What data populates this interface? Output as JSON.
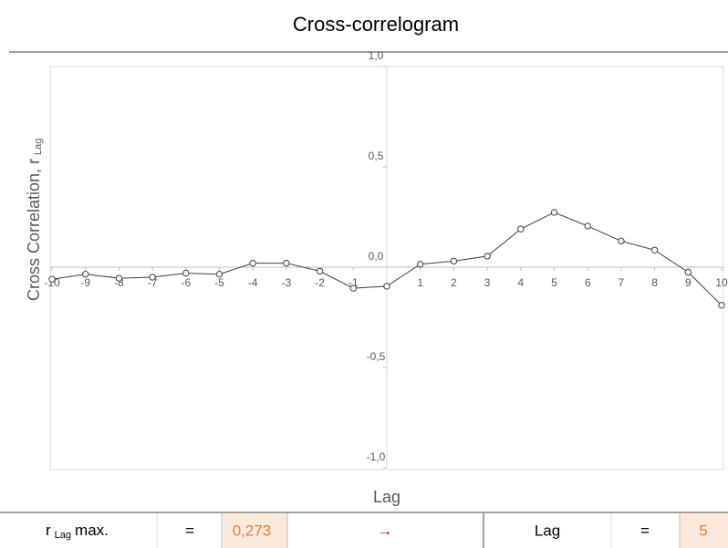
{
  "chart_data": {
    "type": "line",
    "title": "Cross-correlogram",
    "x_label": "Lag",
    "y_label": "Cross Correlation, r",
    "y_label_sub": "Lag",
    "x": [
      -10,
      -9,
      -8,
      -7,
      -6,
      -5,
      -4,
      -3,
      -2,
      -1,
      0,
      1,
      2,
      3,
      4,
      5,
      6,
      7,
      8,
      9,
      10
    ],
    "series": [
      {
        "color": "#404040",
        "values": [
          -0.06,
          -0.035,
          -0.055,
          -0.05,
          -0.03,
          -0.035,
          0.02,
          0.02,
          -0.02,
          -0.105,
          -0.095,
          0.015,
          0.03,
          0.055,
          0.19,
          0.273,
          0.205,
          0.13,
          0.085,
          -0.025,
          -0.19
        ]
      }
    ],
    "xlim": [
      -10,
      10
    ],
    "ylim": [
      -1,
      1
    ],
    "xticks": [
      -10,
      -9,
      -8,
      -7,
      -6,
      -5,
      -4,
      -3,
      -2,
      -1,
      1,
      2,
      3,
      4,
      5,
      6,
      7,
      8,
      9,
      10
    ],
    "yticks": [
      {
        "value": 1,
        "label": "1,0"
      },
      {
        "value": 0.5,
        "label": "0,5"
      },
      {
        "value": 0,
        "label": "0,0"
      },
      {
        "value": -0.5,
        "label": "-0,5"
      },
      {
        "value": -1,
        "label": "-1,0"
      }
    ]
  },
  "summary": {
    "r_label": "r",
    "r_sub": "Lag",
    "r_suffix": "max.",
    "eq": "=",
    "r_value": "0,273",
    "arrow": "→",
    "lag_label": "Lag",
    "lag_eq": "=",
    "lag_value": "5"
  }
}
